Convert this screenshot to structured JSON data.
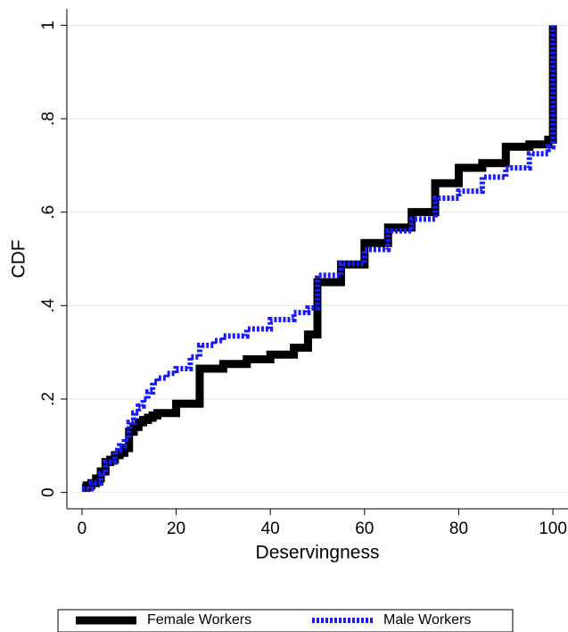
{
  "chart_data": {
    "type": "line",
    "step": true,
    "x_label": "Deservingness",
    "y_label": "CDF",
    "xlim": [
      -3.2,
      103.2
    ],
    "ylim": [
      -0.035,
      1.035
    ],
    "xticks": [
      0,
      20,
      40,
      60,
      80,
      100
    ],
    "yticks": [
      0,
      {
        "value": 0.2,
        "label": ".2"
      },
      {
        "value": 0.4,
        "label": ".4"
      },
      {
        "value": 0.6,
        "label": ".6"
      },
      {
        "value": 0.8,
        "label": ".8"
      },
      1
    ],
    "grid": true,
    "legend": "bottom",
    "series": [
      {
        "name": "Female Workers",
        "color": "#000000",
        "dashed": false,
        "x": [
          0,
          1,
          2,
          3,
          4,
          5,
          6,
          7,
          8,
          9,
          10,
          11,
          12,
          13,
          14,
          15,
          16,
          20,
          25,
          30,
          35,
          40,
          45,
          48,
          50,
          55,
          60,
          65,
          70,
          75,
          80,
          85,
          90,
          95,
          99,
          100
        ],
        "values": [
          0.01,
          0.015,
          0.02,
          0.03,
          0.045,
          0.065,
          0.07,
          0.08,
          0.085,
          0.095,
          0.13,
          0.14,
          0.15,
          0.155,
          0.16,
          0.165,
          0.17,
          0.19,
          0.265,
          0.275,
          0.285,
          0.295,
          0.31,
          0.338,
          0.45,
          0.488,
          0.534,
          0.567,
          0.6,
          0.662,
          0.695,
          0.705,
          0.74,
          0.745,
          0.755,
          1
        ]
      },
      {
        "name": "Male Workers",
        "color": "#1a1aff",
        "dashed": true,
        "x": [
          0,
          2,
          4,
          5,
          7,
          8,
          9,
          10,
          11,
          12,
          13,
          14,
          15,
          16,
          18,
          20,
          23,
          25,
          28,
          30,
          35,
          40,
          45,
          48,
          50,
          55,
          60,
          65,
          70,
          75,
          80,
          85,
          90,
          95,
          99,
          100
        ],
        "values": [
          0.008,
          0.02,
          0.04,
          0.065,
          0.09,
          0.1,
          0.115,
          0.15,
          0.17,
          0.185,
          0.2,
          0.215,
          0.235,
          0.245,
          0.255,
          0.265,
          0.29,
          0.315,
          0.325,
          0.335,
          0.35,
          0.37,
          0.385,
          0.395,
          0.465,
          0.49,
          0.52,
          0.56,
          0.585,
          0.63,
          0.645,
          0.675,
          0.695,
          0.725,
          0.74,
          1
        ]
      }
    ]
  }
}
